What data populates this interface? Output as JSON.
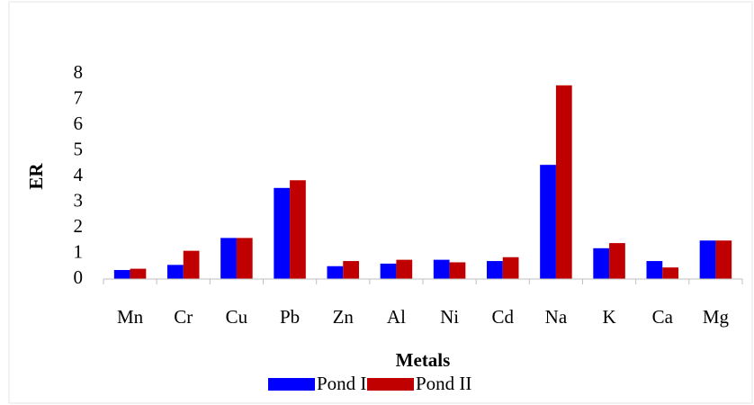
{
  "chart_data": {
    "type": "bar",
    "categories": [
      "Mn",
      "Cr",
      "Cu",
      "Pb",
      "Zn",
      "Al",
      "Ni",
      "Cd",
      "Na",
      "K",
      "Ca",
      "Mg"
    ],
    "series": [
      {
        "name": "Pond I",
        "color": "#0000ff",
        "values": [
          0.35,
          0.55,
          1.6,
          3.55,
          0.5,
          0.6,
          0.75,
          0.7,
          4.45,
          1.2,
          0.7,
          1.5
        ]
      },
      {
        "name": "Pond II",
        "color": "#c00000",
        "values": [
          0.4,
          1.1,
          1.6,
          3.85,
          0.7,
          0.75,
          0.65,
          0.85,
          7.55,
          1.4,
          0.45,
          1.5
        ]
      }
    ],
    "ylim": [
      0,
      8
    ],
    "yticks": [
      0,
      1,
      2,
      3,
      4,
      5,
      6,
      7,
      8
    ],
    "y_label": "ER",
    "x_label": "Metals",
    "legend": "bottom"
  }
}
